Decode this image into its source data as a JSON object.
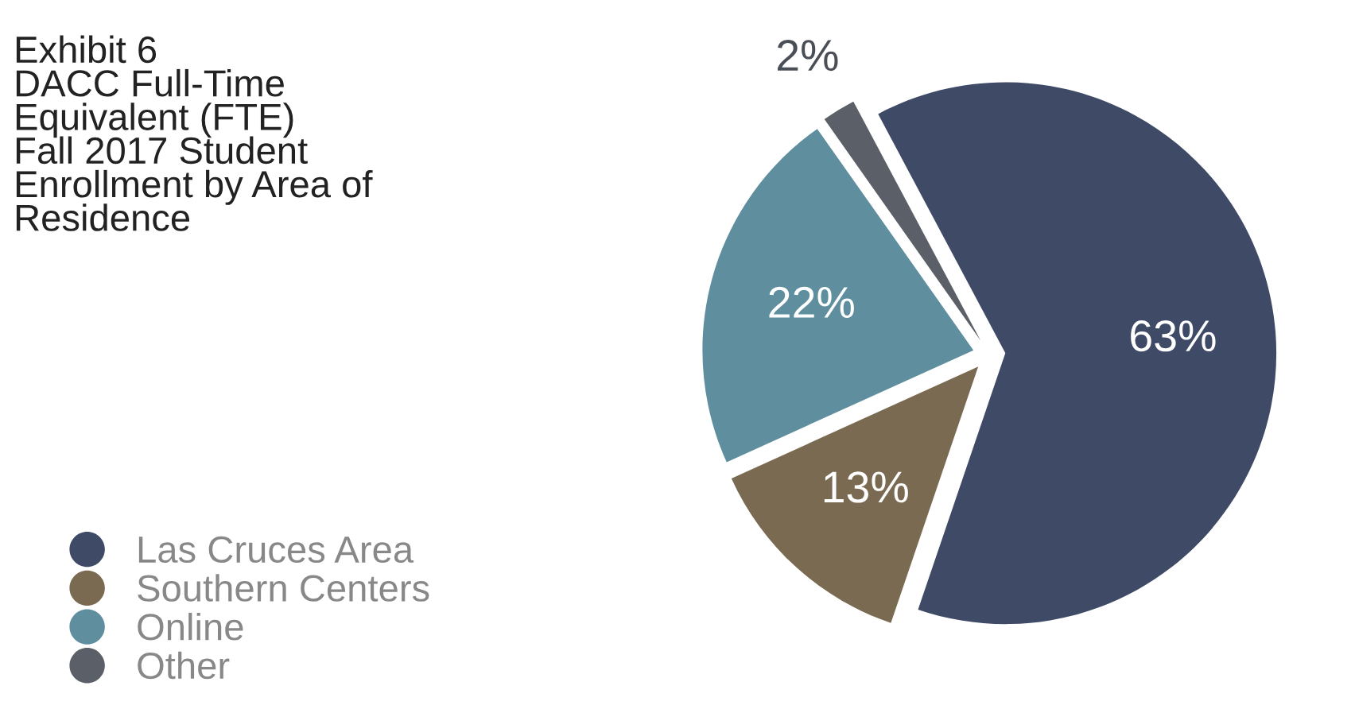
{
  "chart_data": {
    "type": "pie",
    "title": "Exhibit 6\nDACC Full-Time\nEquivalent (FTE)\nFall 2017 Student\nEnrollment by Area of\nResidence",
    "categories": [
      "Las Cruces Area",
      "Southern Centers",
      "Online",
      "Other"
    ],
    "values": [
      63,
      13,
      22,
      2
    ],
    "value_labels": [
      "63%",
      "13%",
      "22%",
      "2%"
    ],
    "colors": [
      "#3e4a66",
      "#7a6a52",
      "#5f8e9e",
      "#5b6068"
    ],
    "legend": "bottom left"
  }
}
